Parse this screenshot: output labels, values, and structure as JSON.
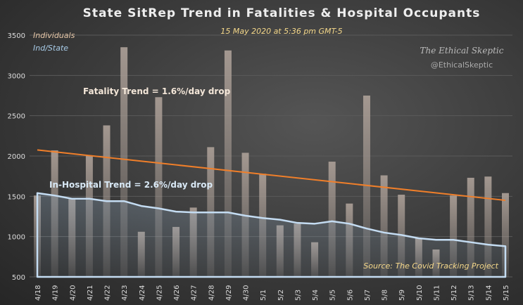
{
  "chart_data": {
    "type": "bar",
    "title": "State SitRep Trend in Fatalities & Hospital Occupants",
    "subtitle": "15 May 2020 at 5:36 pm GMT-5",
    "legend": [
      "Individuals",
      "Ind/State"
    ],
    "watermark": [
      "The Ethical Skeptic",
      "@EthicalSkeptic"
    ],
    "source": "Source: The Covid Tracking Project",
    "annotations": [
      "Fatality Trend =  1.6%/day drop",
      "In-Hospital Trend =  2.6%/day drop"
    ],
    "ylim": [
      500,
      3500
    ],
    "yticks": [
      500,
      1000,
      1500,
      2000,
      2500,
      3000,
      3500
    ],
    "grid": true,
    "categories": [
      "4/18",
      "4/19",
      "4/20",
      "4/21",
      "4/22",
      "4/23",
      "4/24",
      "4/25",
      "4/26",
      "4/27",
      "4/28",
      "4/29",
      "4/30",
      "5/1",
      "5/2",
      "5/3",
      "5/4",
      "5/5",
      "5/6",
      "5/7",
      "5/8",
      "5/9",
      "5/10",
      "5/11",
      "5/12",
      "5/13",
      "5/14",
      "5/15"
    ],
    "series": [
      {
        "type": "bar",
        "values": [
          1510,
          2070,
          1480,
          2000,
          2380,
          3350,
          1060,
          2730,
          1120,
          1360,
          2110,
          3310,
          2040,
          1780,
          1140,
          1160,
          930,
          1930,
          1410,
          2750,
          1760,
          1520,
          980,
          840,
          1510,
          1730,
          1745,
          1540
        ]
      },
      {
        "type": "area",
        "values": [
          1540,
          1510,
          1470,
          1470,
          1440,
          1440,
          1380,
          1350,
          1310,
          1300,
          1300,
          1300,
          1260,
          1230,
          1210,
          1170,
          1160,
          1190,
          1160,
          1100,
          1050,
          1020,
          980,
          960,
          960,
          930,
          900,
          880
        ]
      },
      {
        "type": "trendline",
        "values_at_ends": [
          2075,
          1450
        ]
      }
    ],
    "colors": {
      "bar": "#a89c94",
      "area_line": "#b8d4ee",
      "trend": "#f07f2a",
      "subtitle": "#f5d88a",
      "legend1": "#e8c8a8",
      "legend2": "#a8cce8",
      "source": "#f5d88a"
    }
  }
}
